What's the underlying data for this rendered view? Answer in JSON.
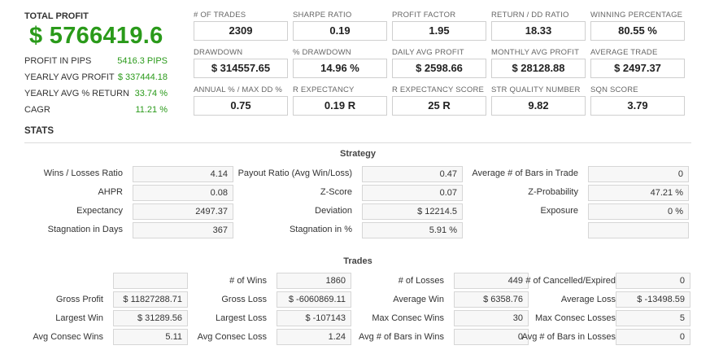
{
  "summary": {
    "total_profit_label": "TOTAL PROFIT",
    "total_profit_value": "$ 5766419.6",
    "rows": [
      {
        "label": "PROFIT IN PIPS",
        "value": "5416.3 PIPS"
      },
      {
        "label": "YEARLY AVG PROFIT",
        "value": "$ 337444.18"
      },
      {
        "label": "YEARLY AVG % RETURN",
        "value": "33.74 %"
      },
      {
        "label": "CAGR",
        "value": "11.21 %"
      }
    ]
  },
  "metrics": [
    {
      "label": "# OF TRADES",
      "value": "2309"
    },
    {
      "label": "SHARPE RATIO",
      "value": "0.19"
    },
    {
      "label": "PROFIT FACTOR",
      "value": "1.95"
    },
    {
      "label": "RETURN / DD RATIO",
      "value": "18.33"
    },
    {
      "label": "WINNING PERCENTAGE",
      "value": "80.55 %"
    },
    {
      "label": "DRAWDOWN",
      "value": "$ 314557.65"
    },
    {
      "label": "% DRAWDOWN",
      "value": "14.96 %"
    },
    {
      "label": "DAILY AVG PROFIT",
      "value": "$ 2598.66"
    },
    {
      "label": "MONTHLY AVG PROFIT",
      "value": "$ 28128.88"
    },
    {
      "label": "AVERAGE TRADE",
      "value": "$ 2497.37"
    },
    {
      "label": "ANNUAL % / MAX DD %",
      "value": "0.75"
    },
    {
      "label": "R EXPECTANCY",
      "value": "0.19 R"
    },
    {
      "label": "R EXPECTANCY SCORE",
      "value": "25 R"
    },
    {
      "label": "STR QUALITY NUMBER",
      "value": "9.82"
    },
    {
      "label": "SQN SCORE",
      "value": "3.79"
    }
  ],
  "stats": {
    "heading": "STATS",
    "strategy": {
      "title": "Strategy",
      "rows": [
        [
          {
            "label": "Wins / Losses Ratio",
            "value": "4.14"
          },
          {
            "label": "Payout Ratio (Avg Win/Loss)",
            "value": "0.47"
          },
          {
            "label": "Average # of Bars in Trade",
            "value": "0"
          }
        ],
        [
          {
            "label": "AHPR",
            "value": "0.08"
          },
          {
            "label": "Z-Score",
            "value": "0.07"
          },
          {
            "label": "Z-Probability",
            "value": "47.21 %"
          }
        ],
        [
          {
            "label": "Expectancy",
            "value": "2497.37"
          },
          {
            "label": "Deviation",
            "value": "$ 12214.5"
          },
          {
            "label": "Exposure",
            "value": "0 %"
          }
        ],
        [
          {
            "label": "Stagnation in Days",
            "value": "367"
          },
          {
            "label": "Stagnation in %",
            "value": "5.91 %"
          },
          {
            "label": "",
            "value": ""
          }
        ]
      ]
    },
    "trades": {
      "title": "Trades",
      "rows": [
        [
          {
            "label": "",
            "value": ""
          },
          {
            "label": "# of Wins",
            "value": "1860"
          },
          {
            "label": "# of Losses",
            "value": "449"
          },
          {
            "label": "# of Cancelled/Expired",
            "value": "0"
          }
        ],
        [
          {
            "label": "Gross Profit",
            "value": "$ 11827288.71"
          },
          {
            "label": "Gross Loss",
            "value": "$ -6060869.11"
          },
          {
            "label": "Average Win",
            "value": "$ 6358.76"
          },
          {
            "label": "Average Loss",
            "value": "$ -13498.59"
          }
        ],
        [
          {
            "label": "Largest Win",
            "value": "$ 31289.56"
          },
          {
            "label": "Largest Loss",
            "value": "$ -107143"
          },
          {
            "label": "Max Consec Wins",
            "value": "30"
          },
          {
            "label": "Max Consec Losses",
            "value": "5"
          }
        ],
        [
          {
            "label": "Avg Consec Wins",
            "value": "5.11"
          },
          {
            "label": "Avg Consec Loss",
            "value": "1.24"
          },
          {
            "label": "Avg # of Bars in Wins",
            "value": "0"
          },
          {
            "label": "Avg # of Bars in Losses",
            "value": "0"
          }
        ]
      ]
    }
  }
}
